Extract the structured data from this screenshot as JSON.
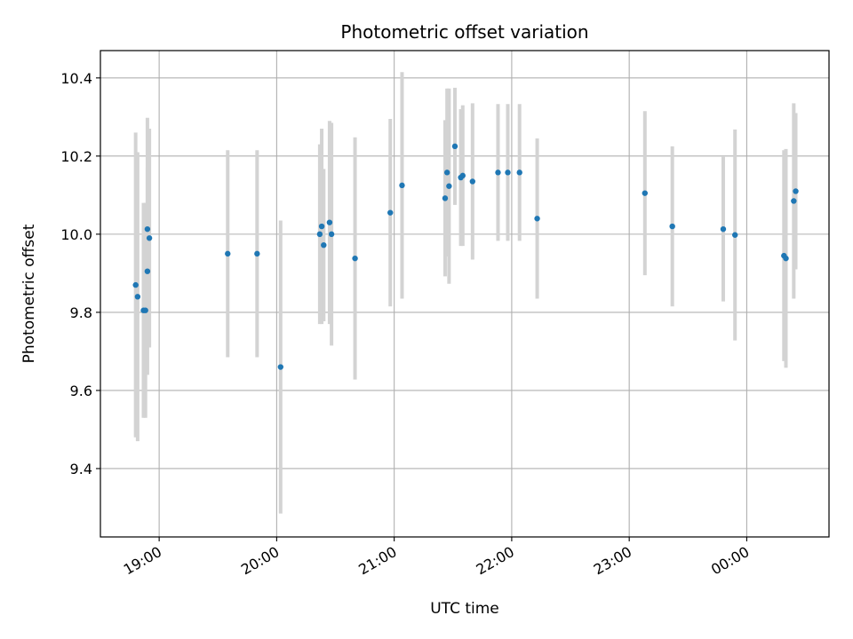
{
  "chart_data": {
    "type": "scatter",
    "title": "Photometric offset variation",
    "xlabel": "UTC time",
    "ylabel": "Photometric offset",
    "x_ticks": [
      "19:00",
      "20:00",
      "21:00",
      "22:00",
      "23:00",
      "00:00"
    ],
    "y_ticks": [
      "9.4",
      "9.6",
      "9.8",
      "10.0",
      "10.2",
      "10.4"
    ],
    "xlim": [
      "18:30",
      "00:42"
    ],
    "ylim": [
      9.225,
      10.47
    ],
    "grid": true,
    "colors": {
      "points": "#1f77b4",
      "errorbars": "#d3d3d3",
      "grid": "#b0b0b0"
    },
    "points": [
      {
        "x": "18:48",
        "y": 9.87,
        "err": 0.39
      },
      {
        "x": "18:49",
        "y": 9.84,
        "err": 0.37
      },
      {
        "x": "18:52",
        "y": 9.805,
        "err": 0.275
      },
      {
        "x": "18:53",
        "y": 9.805,
        "err": 0.275
      },
      {
        "x": "18:54",
        "y": 10.013,
        "err": 0.285
      },
      {
        "x": "18:54",
        "y": 9.905,
        "err": 0.265
      },
      {
        "x": "18:55",
        "y": 9.99,
        "err": 0.28
      },
      {
        "x": "19:35",
        "y": 9.95,
        "err": 0.265
      },
      {
        "x": "19:50",
        "y": 9.95,
        "err": 0.265
      },
      {
        "x": "20:02",
        "y": 9.66,
        "err": 0.375
      },
      {
        "x": "20:22",
        "y": 10.0,
        "err": 0.23
      },
      {
        "x": "20:23",
        "y": 10.02,
        "err": 0.25
      },
      {
        "x": "20:24",
        "y": 9.972,
        "err": 0.195
      },
      {
        "x": "20:27",
        "y": 10.03,
        "err": 0.26
      },
      {
        "x": "20:28",
        "y": 10.0,
        "err": 0.285
      },
      {
        "x": "20:40",
        "y": 9.938,
        "err": 0.31
      },
      {
        "x": "20:58",
        "y": 10.055,
        "err": 0.24
      },
      {
        "x": "21:04",
        "y": 10.125,
        "err": 0.29
      },
      {
        "x": "21:26",
        "y": 10.092,
        "err": 0.2
      },
      {
        "x": "21:27",
        "y": 10.158,
        "err": 0.215
      },
      {
        "x": "21:28",
        "y": 10.123,
        "err": 0.25
      },
      {
        "x": "21:31",
        "y": 10.225,
        "err": 0.15
      },
      {
        "x": "21:34",
        "y": 10.145,
        "err": 0.175
      },
      {
        "x": "21:35",
        "y": 10.15,
        "err": 0.18
      },
      {
        "x": "21:40",
        "y": 10.135,
        "err": 0.2
      },
      {
        "x": "21:53",
        "y": 10.158,
        "err": 0.175
      },
      {
        "x": "21:58",
        "y": 10.158,
        "err": 0.175
      },
      {
        "x": "22:04",
        "y": 10.158,
        "err": 0.175
      },
      {
        "x": "22:13",
        "y": 10.04,
        "err": 0.205
      },
      {
        "x": "23:08",
        "y": 10.105,
        "err": 0.21
      },
      {
        "x": "23:22",
        "y": 10.02,
        "err": 0.205
      },
      {
        "x": "23:48",
        "y": 10.013,
        "err": 0.185
      },
      {
        "x": "23:54",
        "y": 9.998,
        "err": 0.27
      },
      {
        "x": "00:19",
        "y": 9.945,
        "err": 0.27
      },
      {
        "x": "00:20",
        "y": 9.938,
        "err": 0.28
      },
      {
        "x": "00:24",
        "y": 10.085,
        "err": 0.25
      },
      {
        "x": "00:25",
        "y": 10.11,
        "err": 0.2
      }
    ]
  }
}
